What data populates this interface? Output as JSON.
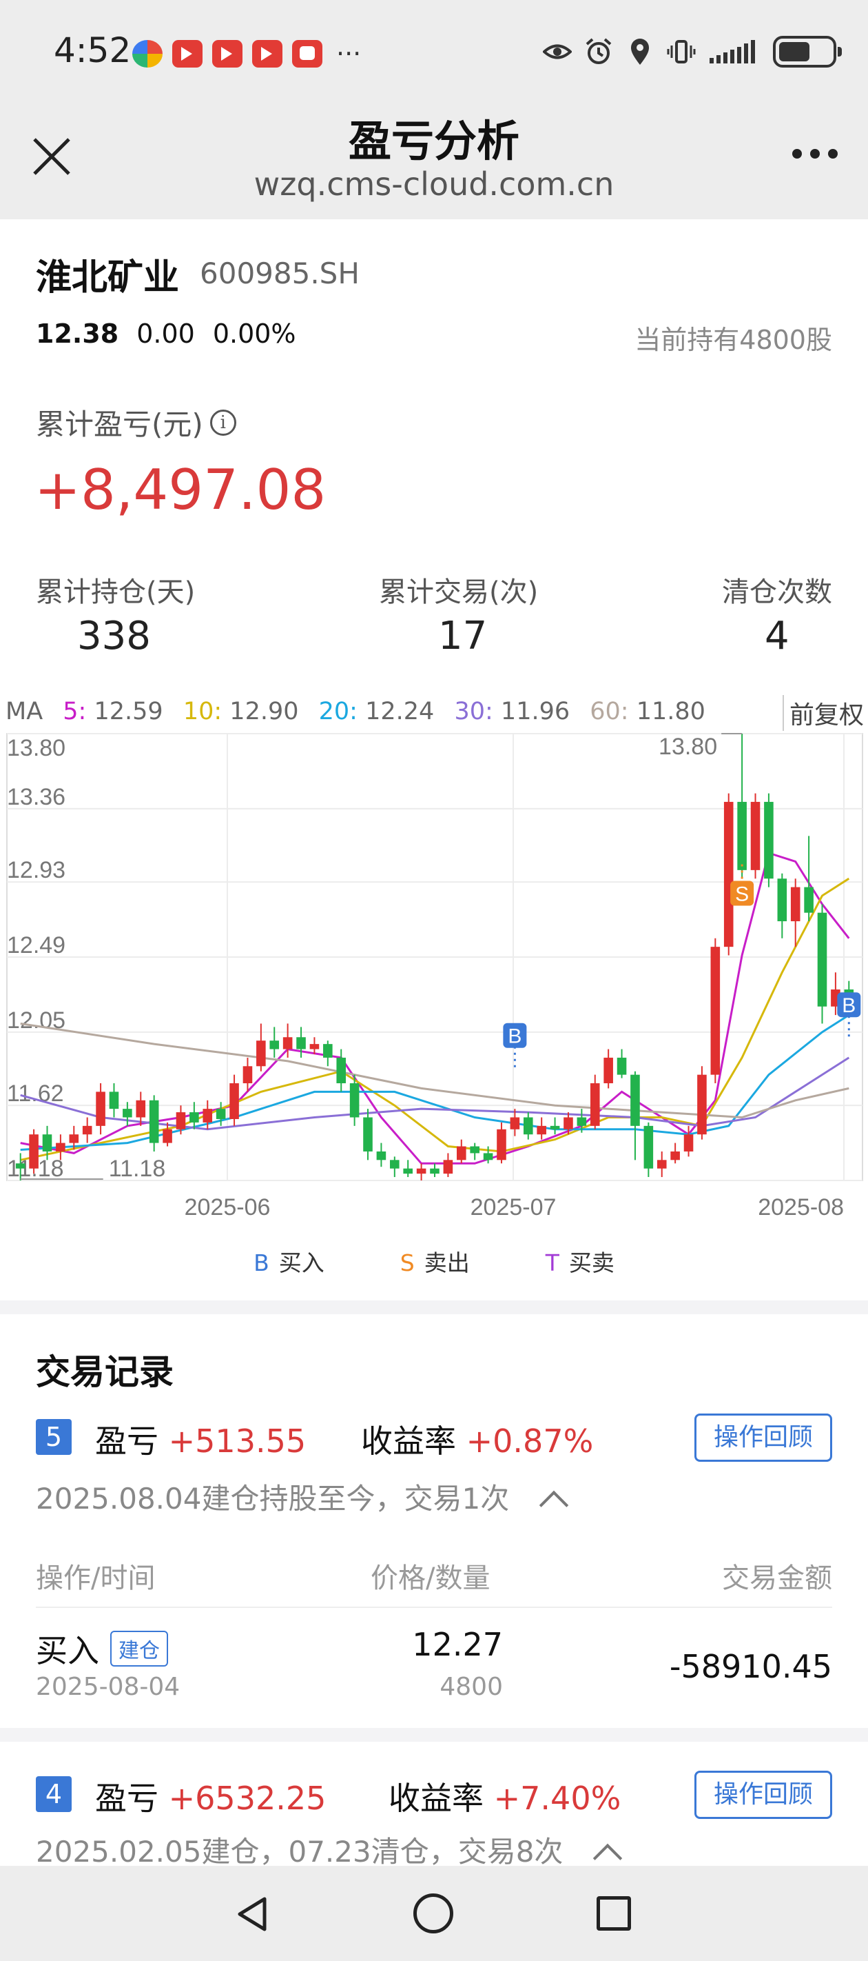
{
  "status": {
    "time": "4:52",
    "more": "···"
  },
  "title_bar": {
    "title": "盈亏分析",
    "url": "wzq.cms-cloud.com.cn"
  },
  "stock": {
    "name": "淮北矿业",
    "code": "600985.SH",
    "price": "12.38",
    "change": "0.00",
    "change_pct": "0.00%",
    "holding": "当前持有4800股"
  },
  "pnl": {
    "label": "累计盈亏(元)",
    "info": "i",
    "value": "+8,497.08"
  },
  "stats": [
    {
      "label": "累计持仓(天)",
      "value": "338"
    },
    {
      "label": "累计交易(次)",
      "value": "17"
    },
    {
      "label": "清仓次数",
      "value": "4"
    }
  ],
  "chart_header": {
    "ma": "MA",
    "items": [
      {
        "key": "5:",
        "value": "12.59",
        "color": "#c81ec8"
      },
      {
        "key": "10:",
        "value": "12.90",
        "color": "#d6b80c"
      },
      {
        "key": "20:",
        "value": "12.24",
        "color": "#1ba8e0"
      },
      {
        "key": "30:",
        "value": "11.96",
        "color": "#8a6fd6"
      },
      {
        "key": "60:",
        "value": "11.80",
        "color": "#b5a89e"
      }
    ],
    "adjust": "前复权"
  },
  "chart_data": {
    "type": "candlestick",
    "y_ticks": [
      "13.80",
      "13.36",
      "12.93",
      "12.49",
      "12.05",
      "11.62",
      "11.18"
    ],
    "ylim": [
      11.18,
      13.8
    ],
    "x_ticks": [
      "2025-06",
      "2025-07",
      "2025-08"
    ],
    "high_label": "13.80",
    "low_label": "11.18",
    "candles": [
      [
        11.28,
        11.25,
        11.34,
        11.18
      ],
      [
        11.25,
        11.45,
        11.48,
        11.22
      ],
      [
        11.45,
        11.35,
        11.5,
        11.3
      ],
      [
        11.35,
        11.4,
        11.45,
        11.3
      ],
      [
        11.4,
        11.45,
        11.5,
        11.36
      ],
      [
        11.45,
        11.5,
        11.55,
        11.4
      ],
      [
        11.5,
        11.7,
        11.75,
        11.45
      ],
      [
        11.7,
        11.6,
        11.75,
        11.55
      ],
      [
        11.6,
        11.55,
        11.64,
        11.5
      ],
      [
        11.55,
        11.65,
        11.7,
        11.5
      ],
      [
        11.65,
        11.4,
        11.68,
        11.35
      ],
      [
        11.4,
        11.48,
        11.52,
        11.38
      ],
      [
        11.48,
        11.58,
        11.62,
        11.45
      ],
      [
        11.58,
        11.52,
        11.64,
        11.48
      ],
      [
        11.52,
        11.6,
        11.65,
        11.48
      ],
      [
        11.6,
        11.54,
        11.64,
        11.5
      ],
      [
        11.54,
        11.75,
        11.8,
        11.5
      ],
      [
        11.75,
        11.85,
        11.9,
        11.7
      ],
      [
        11.85,
        12.0,
        12.1,
        11.82
      ],
      [
        12.0,
        11.95,
        12.08,
        11.9
      ],
      [
        11.95,
        12.02,
        12.1,
        11.9
      ],
      [
        12.02,
        11.95,
        12.08,
        11.9
      ],
      [
        11.95,
        11.98,
        12.02,
        11.92
      ],
      [
        11.98,
        11.9,
        12.0,
        11.85
      ],
      [
        11.9,
        11.75,
        11.95,
        11.7
      ],
      [
        11.75,
        11.55,
        11.8,
        11.5
      ],
      [
        11.55,
        11.35,
        11.6,
        11.3
      ],
      [
        11.35,
        11.3,
        11.4,
        11.26
      ],
      [
        11.3,
        11.25,
        11.32,
        11.2
      ],
      [
        11.25,
        11.22,
        11.3,
        11.2
      ],
      [
        11.22,
        11.25,
        11.28,
        11.18
      ],
      [
        11.25,
        11.22,
        11.28,
        11.2
      ],
      [
        11.22,
        11.3,
        11.34,
        11.2
      ],
      [
        11.3,
        11.38,
        11.42,
        11.28
      ],
      [
        11.38,
        11.34,
        11.4,
        11.3
      ],
      [
        11.34,
        11.3,
        11.38,
        11.28
      ],
      [
        11.3,
        11.48,
        11.52,
        11.28
      ],
      [
        11.48,
        11.55,
        11.6,
        11.44
      ],
      [
        11.55,
        11.45,
        11.58,
        11.42
      ],
      [
        11.45,
        11.5,
        11.55,
        11.42
      ],
      [
        11.5,
        11.48,
        11.55,
        11.45
      ],
      [
        11.48,
        11.55,
        11.58,
        11.45
      ],
      [
        11.55,
        11.5,
        11.6,
        11.46
      ],
      [
        11.5,
        11.75,
        11.8,
        11.48
      ],
      [
        11.75,
        11.9,
        11.95,
        11.72
      ],
      [
        11.9,
        11.8,
        11.95,
        11.78
      ],
      [
        11.8,
        11.5,
        11.82,
        11.3
      ],
      [
        11.5,
        11.25,
        11.52,
        11.2
      ],
      [
        11.25,
        11.3,
        11.35,
        11.2
      ],
      [
        11.3,
        11.35,
        11.4,
        11.28
      ],
      [
        11.35,
        11.45,
        11.5,
        11.32
      ],
      [
        11.45,
        11.8,
        11.85,
        11.42
      ],
      [
        11.8,
        12.55,
        12.6,
        11.75
      ],
      [
        12.55,
        13.4,
        13.45,
        12.5
      ],
      [
        13.4,
        13.0,
        13.8,
        12.95
      ],
      [
        13.0,
        13.4,
        13.45,
        12.95
      ],
      [
        13.4,
        12.95,
        13.45,
        12.9
      ],
      [
        12.95,
        12.7,
        12.98,
        12.6
      ],
      [
        12.7,
        12.9,
        12.95,
        12.55
      ],
      [
        12.9,
        12.75,
        13.2,
        12.7
      ],
      [
        12.75,
        12.2,
        12.8,
        12.1
      ],
      [
        12.2,
        12.3,
        12.4,
        12.15
      ],
      [
        12.3,
        12.22,
        12.35,
        12.18
      ]
    ],
    "ma_series": [
      {
        "name": "5",
        "color": "#c81ec8",
        "points": [
          [
            0,
            11.4
          ],
          [
            4,
            11.34
          ],
          [
            8,
            11.5
          ],
          [
            12,
            11.55
          ],
          [
            16,
            11.62
          ],
          [
            20,
            11.95
          ],
          [
            24,
            11.9
          ],
          [
            27,
            11.55
          ],
          [
            30,
            11.28
          ],
          [
            34,
            11.28
          ],
          [
            38,
            11.38
          ],
          [
            42,
            11.5
          ],
          [
            45,
            11.7
          ],
          [
            48,
            11.55
          ],
          [
            50,
            11.45
          ],
          [
            52,
            11.65
          ],
          [
            54,
            12.5
          ],
          [
            56,
            13.1
          ],
          [
            58,
            13.05
          ],
          [
            60,
            12.8
          ],
          [
            62,
            12.6
          ]
        ]
      },
      {
        "name": "10",
        "color": "#d6b80c",
        "points": [
          [
            0,
            11.3
          ],
          [
            6,
            11.4
          ],
          [
            12,
            11.5
          ],
          [
            18,
            11.7
          ],
          [
            24,
            11.82
          ],
          [
            28,
            11.62
          ],
          [
            32,
            11.38
          ],
          [
            36,
            11.35
          ],
          [
            40,
            11.42
          ],
          [
            44,
            11.55
          ],
          [
            48,
            11.55
          ],
          [
            51,
            11.5
          ],
          [
            54,
            11.9
          ],
          [
            57,
            12.4
          ],
          [
            60,
            12.85
          ],
          [
            62,
            12.95
          ]
        ]
      },
      {
        "name": "20",
        "color": "#1ba8e0",
        "points": [
          [
            0,
            11.36
          ],
          [
            8,
            11.4
          ],
          [
            16,
            11.55
          ],
          [
            22,
            11.7
          ],
          [
            28,
            11.7
          ],
          [
            34,
            11.55
          ],
          [
            40,
            11.48
          ],
          [
            46,
            11.48
          ],
          [
            50,
            11.45
          ],
          [
            53,
            11.5
          ],
          [
            56,
            11.8
          ],
          [
            60,
            12.05
          ],
          [
            62,
            12.15
          ]
        ]
      },
      {
        "name": "30",
        "color": "#8a6fd6",
        "points": [
          [
            0,
            11.68
          ],
          [
            6,
            11.55
          ],
          [
            14,
            11.48
          ],
          [
            22,
            11.55
          ],
          [
            30,
            11.6
          ],
          [
            38,
            11.58
          ],
          [
            46,
            11.55
          ],
          [
            51,
            11.5
          ],
          [
            55,
            11.55
          ],
          [
            59,
            11.75
          ],
          [
            62,
            11.9
          ]
        ]
      },
      {
        "name": "60",
        "color": "#b5a89e",
        "points": [
          [
            0,
            12.1
          ],
          [
            10,
            11.98
          ],
          [
            20,
            11.88
          ],
          [
            30,
            11.72
          ],
          [
            40,
            11.62
          ],
          [
            48,
            11.58
          ],
          [
            54,
            11.55
          ],
          [
            58,
            11.65
          ],
          [
            62,
            11.72
          ]
        ]
      }
    ],
    "markers": [
      {
        "label": "B",
        "index": 37,
        "value": 11.82,
        "color": "#3a78d6"
      },
      {
        "label": "S",
        "index": 54,
        "value": 13.05,
        "color": "#f08a24"
      },
      {
        "label": "B",
        "index": 62,
        "value": 12.0,
        "color": "#3a78d6"
      }
    ]
  },
  "legend": [
    {
      "mark": "B",
      "label": "买入",
      "color": "#3a78d6"
    },
    {
      "mark": "S",
      "label": "卖出",
      "color": "#f08a24"
    },
    {
      "mark": "T",
      "label": "买卖",
      "color": "#a33cd6"
    }
  ],
  "records": {
    "title": "交易记录",
    "items": [
      {
        "index": "5",
        "pnl_label": "盈亏",
        "pnl": "+513.55",
        "rate_label": "收益率",
        "rate": "+0.87%",
        "review": "操作回顾",
        "summary": "2025.08.04建仓持股至今，交易1次"
      },
      {
        "index": "4",
        "pnl_label": "盈亏",
        "pnl": "+6532.25",
        "rate_label": "收益率",
        "rate": "+7.40%",
        "review": "操作回顾",
        "summary": "2025.02.05建仓，07.23清仓，交易8次"
      }
    ],
    "table_head": {
      "op": "操作/时间",
      "price": "价格/数量",
      "amount": "交易金额"
    },
    "row": {
      "op": "买入",
      "tag": "建仓",
      "date": "2025-08-04",
      "price": "12.27",
      "qty": "4800",
      "amount": "-58910.45"
    }
  }
}
